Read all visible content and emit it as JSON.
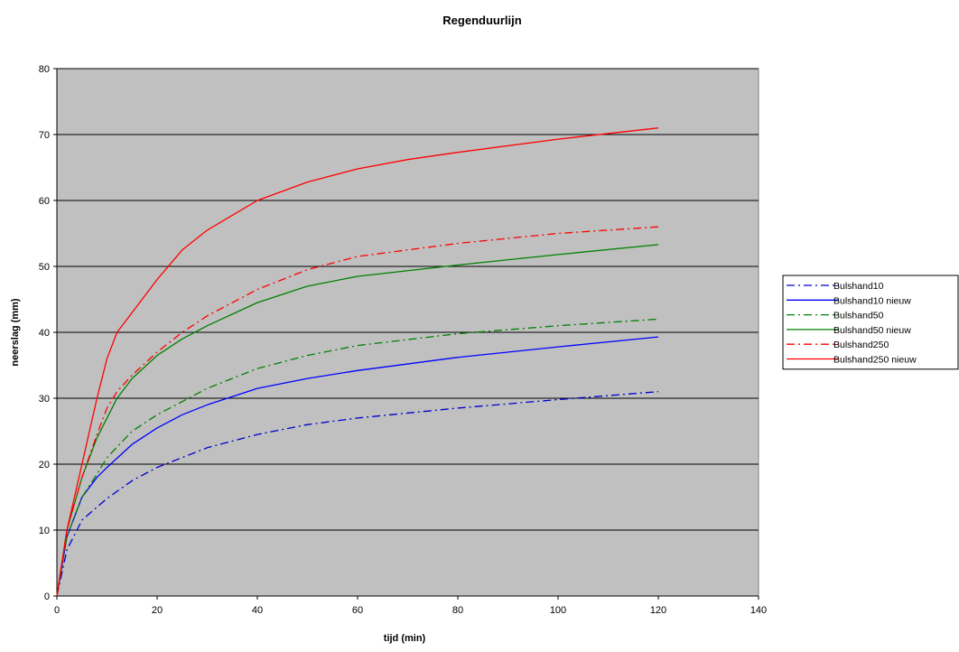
{
  "chart_data": {
    "type": "line",
    "title": "Regenduurlijn",
    "xlabel": "tijd (min)",
    "ylabel": "neerslag (mm)",
    "xlim": [
      0,
      140
    ],
    "ylim": [
      0,
      80
    ],
    "x_ticks": [
      0,
      20,
      40,
      60,
      80,
      100,
      120,
      140
    ],
    "y_ticks": [
      0,
      10,
      20,
      30,
      40,
      50,
      60,
      70,
      80
    ],
    "grid": "horizontal",
    "plot_background": "#c0c0c0",
    "legend_position": "right",
    "series": [
      {
        "name": "Bulshand10",
        "color": "#0000cc",
        "dash": "dash-dot",
        "x": [
          0,
          2,
          5,
          8,
          10,
          15,
          20,
          30,
          40,
          50,
          60,
          80,
          100,
          120
        ],
        "y": [
          0,
          7,
          11.5,
          13.5,
          14.8,
          17.5,
          19.5,
          22.5,
          24.5,
          26,
          27,
          28.5,
          29.8,
          31
        ]
      },
      {
        "name": "Bulshand10 nieuw",
        "color": "#0000ff",
        "dash": "solid",
        "x": [
          0,
          2,
          5,
          8,
          10,
          15,
          20,
          25,
          30,
          40,
          50,
          60,
          80,
          100,
          120
        ],
        "y": [
          0,
          9,
          15,
          18,
          19.5,
          23,
          25.5,
          27.5,
          29,
          31.5,
          33,
          34.2,
          36.2,
          37.8,
          39.3
        ]
      },
      {
        "name": "Bulshand50",
        "color": "#008000",
        "dash": "dash-dot",
        "x": [
          0,
          2,
          5,
          8,
          10,
          15,
          20,
          30,
          40,
          50,
          60,
          80,
          100,
          120
        ],
        "y": [
          0,
          9,
          15,
          18.5,
          21,
          25,
          27.5,
          31.5,
          34.5,
          36.5,
          38,
          39.8,
          41,
          42
        ]
      },
      {
        "name": "Bulshand50 nieuw",
        "color": "#008000",
        "dash": "solid",
        "x": [
          0,
          2,
          5,
          8,
          10,
          12,
          15,
          20,
          25,
          30,
          40,
          50,
          60,
          80,
          100,
          120
        ],
        "y": [
          0,
          10,
          18,
          24,
          27,
          30,
          33,
          36.5,
          39,
          41,
          44.5,
          47,
          48.5,
          50.2,
          51.8,
          53.3
        ]
      },
      {
        "name": "Bulshand250",
        "color": "#ff0000",
        "dash": "dash-dot",
        "x": [
          0,
          2,
          5,
          8,
          10,
          12,
          15,
          20,
          25,
          30,
          40,
          50,
          60,
          80,
          100,
          120
        ],
        "y": [
          0,
          10,
          18,
          24.5,
          28.5,
          31,
          33.5,
          37,
          40,
          42.5,
          46.5,
          49.5,
          51.5,
          53.5,
          55,
          56
        ]
      },
      {
        "name": "Bulshand250 nieuw",
        "color": "#ff0000",
        "dash": "solid",
        "x": [
          0,
          2,
          5,
          8,
          10,
          12,
          15,
          20,
          25,
          30,
          40,
          50,
          60,
          70,
          80,
          100,
          120
        ],
        "y": [
          0,
          10,
          20,
          30,
          36,
          40,
          43,
          48,
          52.5,
          55.5,
          60,
          62.8,
          64.8,
          66.2,
          67.3,
          69.3,
          71
        ]
      }
    ]
  }
}
